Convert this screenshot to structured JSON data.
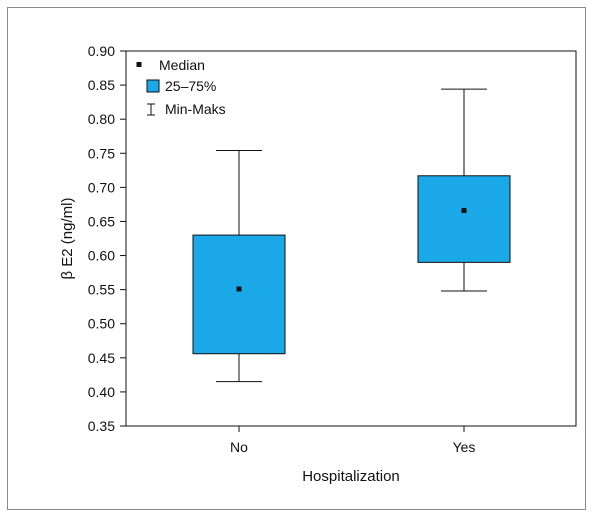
{
  "chart_data": {
    "type": "boxplot",
    "title": "",
    "xlabel": "Hospitalization",
    "ylabel": "β E2 (ng/ml)",
    "ylim": [
      0.35,
      0.9
    ],
    "yticks": [
      0.35,
      0.4,
      0.45,
      0.5,
      0.55,
      0.6,
      0.65,
      0.7,
      0.75,
      0.8,
      0.85,
      0.9
    ],
    "ytick_labels": [
      "0.35",
      "0.40",
      "0.45",
      "0.50",
      "0.55",
      "0.60",
      "0.65",
      "0.70",
      "0.75",
      "0.80",
      "0.85",
      "0.90"
    ],
    "categories": [
      "No",
      "Yes"
    ],
    "boxes": [
      {
        "category": "No",
        "min": 0.415,
        "q1": 0.456,
        "median": 0.551,
        "q3": 0.63,
        "max": 0.754
      },
      {
        "category": "Yes",
        "min": 0.548,
        "q1": 0.59,
        "median": 0.666,
        "q3": 0.717,
        "max": 0.844
      }
    ],
    "legend": {
      "position": "top-left",
      "items": [
        {
          "symbol": "median-square",
          "label": "Median"
        },
        {
          "symbol": "box",
          "label": "25–75%"
        },
        {
          "symbol": "whisker",
          "label": "Min-Maks"
        }
      ]
    },
    "colors": {
      "box_fill": "#1ba8e8",
      "stroke": "#111111",
      "median_marker": "#111111"
    }
  }
}
